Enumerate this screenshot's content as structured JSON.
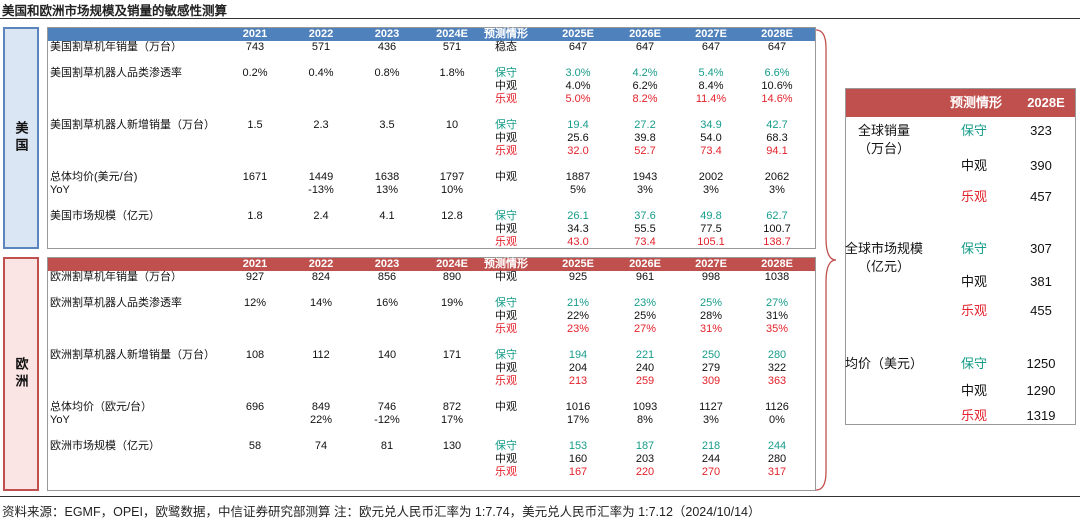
{
  "title": "美国和欧洲市场规模及销量的敏感性测算",
  "colors": {
    "us_header": "#4f81bd",
    "eu_header": "#c0504d",
    "conservative": "#179c8a",
    "optimistic": "#e3222b"
  },
  "chart_data": [
    {
      "type": "table",
      "region_label": "美国",
      "headers": [
        "",
        "2021",
        "2022",
        "2023",
        "2024E",
        "预测情形",
        "2025E",
        "2026E",
        "2027E",
        "2028E"
      ],
      "rows": [
        {
          "label": "美国割草机年销量（万台）",
          "hist": [
            "743",
            "571",
            "436",
            "571"
          ],
          "scenarios": [
            {
              "name": "稳态",
              "tone": "k",
              "values": [
                "647",
                "647",
                "647",
                "647"
              ]
            }
          ]
        },
        {
          "label": "美国割草机器人品类渗透率",
          "hist": [
            "0.2%",
            "0.4%",
            "0.8%",
            "1.8%"
          ],
          "scenarios": [
            {
              "name": "保守",
              "tone": "g",
              "values": [
                "3.0%",
                "4.2%",
                "5.4%",
                "6.6%"
              ]
            },
            {
              "name": "中观",
              "tone": "k",
              "values": [
                "4.0%",
                "6.2%",
                "8.4%",
                "10.6%"
              ]
            },
            {
              "name": "乐观",
              "tone": "r",
              "values": [
                "5.0%",
                "8.2%",
                "11.4%",
                "14.6%"
              ]
            }
          ]
        },
        {
          "label": "美国割草机器人新增销量（万台）",
          "hist": [
            "1.5",
            "2.3",
            "3.5",
            "10"
          ],
          "scenarios": [
            {
              "name": "保守",
              "tone": "g",
              "values": [
                "19.4",
                "27.2",
                "34.9",
                "42.7"
              ]
            },
            {
              "name": "中观",
              "tone": "k",
              "values": [
                "25.6",
                "39.8",
                "54.0",
                "68.3"
              ]
            },
            {
              "name": "乐观",
              "tone": "r",
              "values": [
                "32.0",
                "52.7",
                "73.4",
                "94.1"
              ]
            }
          ]
        },
        {
          "label": "总体均价(美元/台)",
          "label2": "YoY",
          "hist": [
            "1671",
            "1449",
            "1638",
            "1797"
          ],
          "hist2": [
            "",
            "-13%",
            "13%",
            "10%"
          ],
          "scenarios": [
            {
              "name": "中观",
              "tone": "k",
              "values": [
                "1887",
                "1943",
                "2002",
                "2062"
              ]
            },
            {
              "name": "",
              "tone": "k",
              "values": [
                "5%",
                "3%",
                "3%",
                "3%"
              ]
            }
          ]
        },
        {
          "label": "美国市场规模（亿元）",
          "hist": [
            "1.8",
            "2.4",
            "4.1",
            "12.8"
          ],
          "scenarios": [
            {
              "name": "保守",
              "tone": "g",
              "values": [
                "26.1",
                "37.6",
                "49.8",
                "62.7"
              ]
            },
            {
              "name": "中观",
              "tone": "k",
              "values": [
                "34.3",
                "55.5",
                "77.5",
                "100.7"
              ]
            },
            {
              "name": "乐观",
              "tone": "r",
              "values": [
                "43.0",
                "73.4",
                "105.1",
                "138.7"
              ]
            }
          ]
        }
      ]
    },
    {
      "type": "table",
      "region_label": "欧洲",
      "headers": [
        "",
        "2021",
        "2022",
        "2023",
        "2024E",
        "预测情形",
        "2025E",
        "2026E",
        "2027E",
        "2028E"
      ],
      "rows": [
        {
          "label": "欧洲割草机年销量（万台）",
          "hist": [
            "927",
            "824",
            "856",
            "890"
          ],
          "scenarios": [
            {
              "name": "中观",
              "tone": "k",
              "values": [
                "925",
                "961",
                "998",
                "1038"
              ]
            }
          ]
        },
        {
          "label": "欧洲割草机器人品类渗透率",
          "hist": [
            "12%",
            "14%",
            "16%",
            "19%"
          ],
          "scenarios": [
            {
              "name": "保守",
              "tone": "g",
              "values": [
                "21%",
                "23%",
                "25%",
                "27%"
              ]
            },
            {
              "name": "中观",
              "tone": "k",
              "values": [
                "22%",
                "25%",
                "28%",
                "31%"
              ]
            },
            {
              "name": "乐观",
              "tone": "r",
              "values": [
                "23%",
                "27%",
                "31%",
                "35%"
              ]
            }
          ]
        },
        {
          "label": "欧洲割草机器人新增销量（万台）",
          "hist": [
            "108",
            "112",
            "140",
            "171"
          ],
          "scenarios": [
            {
              "name": "保守",
              "tone": "g",
              "values": [
                "194",
                "221",
                "250",
                "280"
              ]
            },
            {
              "name": "中观",
              "tone": "k",
              "values": [
                "204",
                "240",
                "279",
                "322"
              ]
            },
            {
              "name": "乐观",
              "tone": "r",
              "values": [
                "213",
                "259",
                "309",
                "363"
              ]
            }
          ]
        },
        {
          "label": "总体均价（欧元/台）",
          "label2": "YoY",
          "hist": [
            "696",
            "849",
            "746",
            "872"
          ],
          "hist2": [
            "",
            "22%",
            "-12%",
            "17%"
          ],
          "scenarios": [
            {
              "name": "中观",
              "tone": "k",
              "values": [
                "1016",
                "1093",
                "1127",
                "1126"
              ]
            },
            {
              "name": "",
              "tone": "k",
              "values": [
                "17%",
                "8%",
                "3%",
                "0%"
              ]
            }
          ]
        },
        {
          "label": "欧洲市场规模（亿元）",
          "hist": [
            "58",
            "74",
            "81",
            "130"
          ],
          "scenarios": [
            {
              "name": "保守",
              "tone": "g",
              "values": [
                "153",
                "187",
                "218",
                "244"
              ]
            },
            {
              "name": "中观",
              "tone": "k",
              "values": [
                "160",
                "203",
                "244",
                "280"
              ]
            },
            {
              "name": "乐观",
              "tone": "r",
              "values": [
                "167",
                "220",
                "270",
                "317"
              ]
            }
          ]
        }
      ]
    },
    {
      "type": "table",
      "headers": [
        "",
        "预测情形",
        "2028E"
      ],
      "groups": [
        {
          "label": "全球销量（万台）",
          "label_lines": [
            "全球销量",
            "（万台）"
          ],
          "scenarios": [
            {
              "name": "保守",
              "tone": "g",
              "value": "323"
            },
            {
              "name": "中观",
              "tone": "k",
              "value": "390"
            },
            {
              "name": "乐观",
              "tone": "r",
              "value": "457"
            }
          ]
        },
        {
          "label": "全球市场规模（亿元）",
          "label_lines": [
            "全球市场规模",
            "（亿元）"
          ],
          "scenarios": [
            {
              "name": "保守",
              "tone": "g",
              "value": "307"
            },
            {
              "name": "中观",
              "tone": "k",
              "value": "381"
            },
            {
              "name": "乐观",
              "tone": "r",
              "value": "455"
            }
          ]
        },
        {
          "label": "均价（美元）",
          "label_lines": [
            "均价（美元）"
          ],
          "scenarios": [
            {
              "name": "保守",
              "tone": "g",
              "value": "1250"
            },
            {
              "name": "中观",
              "tone": "k",
              "value": "1290"
            },
            {
              "name": "乐观",
              "tone": "r",
              "value": "1319"
            }
          ]
        }
      ]
    }
  ],
  "footer": "资料来源：EGMF，OPEI，欧鹭数据，中信证券研究部测算  注：欧元兑人民币汇率为 1:7.74，美元兑人民币汇率为 1:7.12（2024/10/14）"
}
